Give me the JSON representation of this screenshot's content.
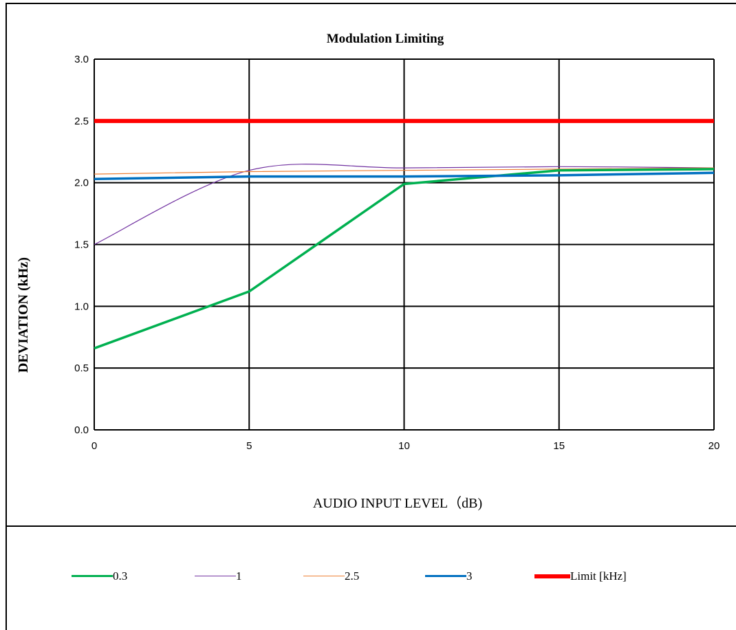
{
  "chart_data": {
    "type": "line",
    "title": "Modulation Limiting",
    "xlabel": "AUDIO INPUT LEVEL（dB)",
    "ylabel": "DEVIATION (kHz)",
    "xlim": [
      0,
      20
    ],
    "ylim": [
      0,
      3
    ],
    "x_ticks": [
      "0",
      "5",
      "10",
      "15",
      "20"
    ],
    "y_ticks": [
      "0.0",
      "0.5",
      "1.0",
      "1.5",
      "2.0",
      "2.5",
      "3.0"
    ],
    "grid": true,
    "legend_position": "bottom",
    "x": [
      0,
      5,
      10,
      15,
      20
    ],
    "series": [
      {
        "name": "0.3",
        "values": [
          0.66,
          1.12,
          1.99,
          2.1,
          2.11
        ],
        "color": "#00b050",
        "smooth": false
      },
      {
        "name": "1",
        "values": [
          1.5,
          2.1,
          2.12,
          2.13,
          2.12
        ],
        "color": "#7030a0",
        "smooth": true
      },
      {
        "name": "2.5",
        "values": [
          2.07,
          2.09,
          2.1,
          2.11,
          2.12
        ],
        "color": "#ed7d31",
        "smooth": false
      },
      {
        "name": "3",
        "values": [
          2.03,
          2.05,
          2.05,
          2.06,
          2.08
        ],
        "color": "#0070c0",
        "smooth": false
      },
      {
        "name": "Limit  [kHz]",
        "values": [
          2.5,
          2.5,
          2.5,
          2.5,
          2.5
        ],
        "color": "#ff0000",
        "smooth": false
      }
    ]
  }
}
